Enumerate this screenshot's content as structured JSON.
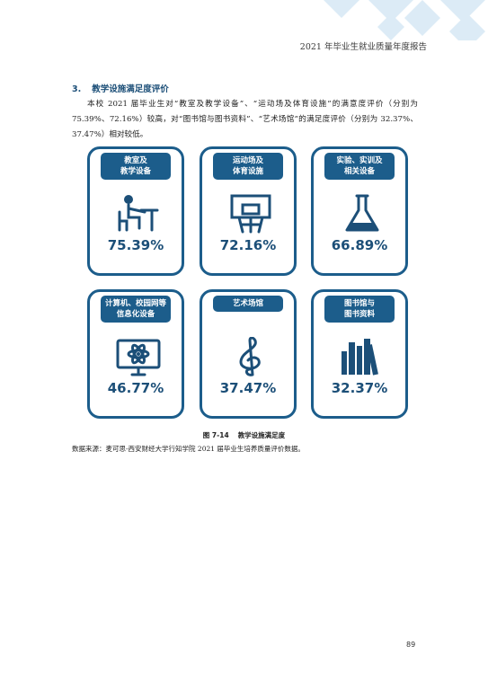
{
  "header": {
    "title": "2021 年毕业生就业质量年度报告"
  },
  "section": {
    "number": "3.",
    "title": "教学设施满足度评价"
  },
  "paragraph": "本校 2021 届毕业生对“教室及教学设备”、“运动场及体育设施”的满意度评价（分别为 75.39%、72.16%）较高，对“图书馆与图书资料”、“艺术场馆”的满足度评价（分别为 32.37%、37.47%）相对较低。",
  "cards": [
    {
      "label": [
        "教室及",
        "教学设备"
      ],
      "value": "75.39%"
    },
    {
      "label": [
        "运动场及",
        "体育设施"
      ],
      "value": "72.16%"
    },
    {
      "label": [
        "实验、实训及",
        "相关设备"
      ],
      "value": "66.89%"
    },
    {
      "label": [
        "计算机、校园网等",
        "信息化设备"
      ],
      "value": "46.77%"
    },
    {
      "label": [
        "艺术场馆"
      ],
      "value": "37.47%"
    },
    {
      "label": [
        "图书馆与",
        "图书资料"
      ],
      "value": "32.37%"
    }
  ],
  "figure": {
    "number": "图 7-14",
    "caption": "教学设施满足度"
  },
  "source": "数据来源：麦可思-西安财经大学行知学院 2021 届毕业生培养质量评价数据。",
  "page_number": "89"
}
